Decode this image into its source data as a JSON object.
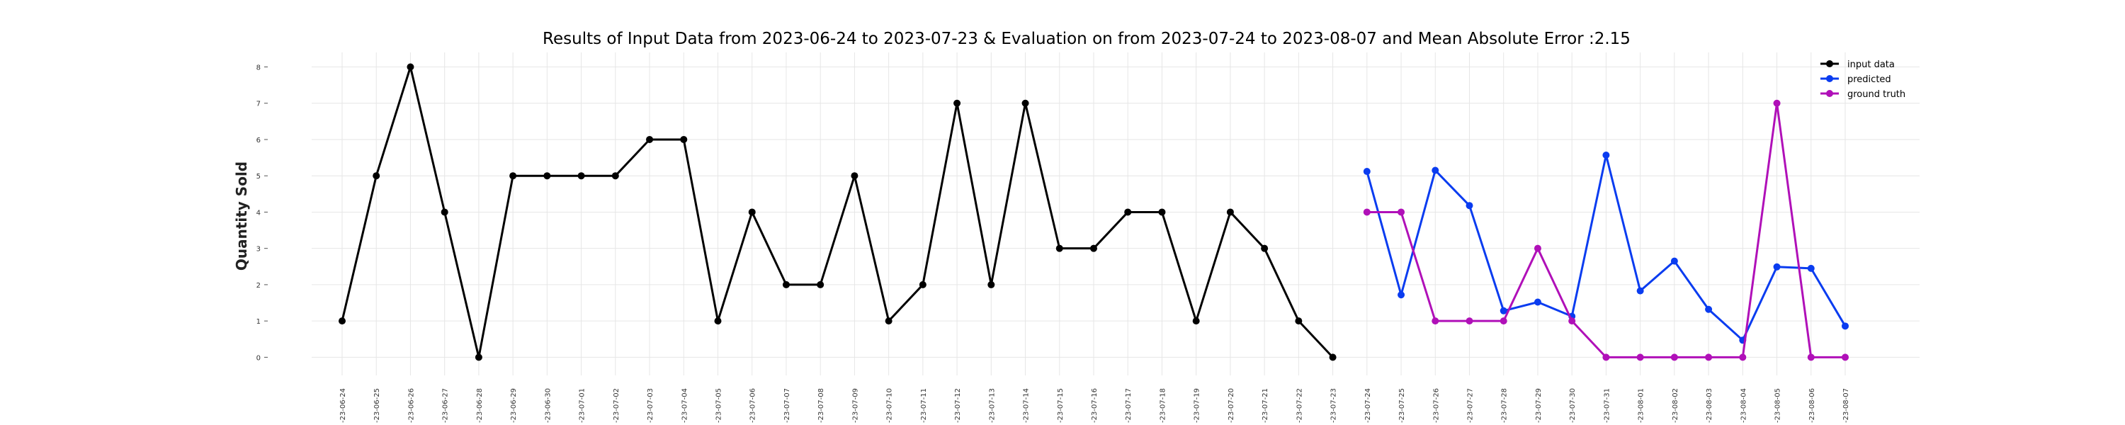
{
  "chart_data": {
    "type": "line",
    "title": "Results of Input Data from 2023-06-24 to 2023-07-23 & Evaluation on from 2023-07-24 to 2023-08-07 and Mean Absolute Error  :2.15",
    "xlabel": "",
    "ylabel": "Quantity Sold",
    "ylim": [
      -0.5,
      8.4
    ],
    "yticks": [
      0,
      1,
      2,
      3,
      4,
      5,
      6,
      7,
      8
    ],
    "grid": true,
    "legend_position": "top-right",
    "x_dates": [
      "2023-06-24",
      "2023-06-25",
      "2023-06-26",
      "2023-06-27",
      "2023-06-28",
      "2023-06-29",
      "2023-06-30",
      "2023-07-01",
      "2023-07-02",
      "2023-07-03",
      "2023-07-04",
      "2023-07-05",
      "2023-07-06",
      "2023-07-07",
      "2023-07-08",
      "2023-07-09",
      "2023-07-10",
      "2023-07-11",
      "2023-07-12",
      "2023-07-13",
      "2023-07-14",
      "2023-07-15",
      "2023-07-16",
      "2023-07-17",
      "2023-07-18",
      "2023-07-19",
      "2023-07-20",
      "2023-07-21",
      "2023-07-22",
      "2023-07-23",
      "2023-07-24",
      "2023-07-25",
      "2023-07-26",
      "2023-07-27",
      "2023-07-28",
      "2023-07-29",
      "2023-07-30",
      "2023-07-31",
      "2023-08-01",
      "2023-08-02",
      "2023-08-03",
      "2023-08-04",
      "2023-08-05",
      "2023-08-06",
      "2023-08-07"
    ],
    "tick_labels": [
      "-23-06-24",
      "-23-06-25",
      "-23-06-26",
      "-23-06-27",
      "-23-06-28",
      "-23-06-29",
      "-23-06-30",
      "-23-07-01",
      "-23-07-02",
      "-23-07-03",
      "-23-07-04",
      "-23-07-05",
      "-23-07-06",
      "-23-07-07",
      "-23-07-08",
      "-23-07-09",
      "-23-07-10",
      "-23-07-11",
      "-23-07-12",
      "-23-07-13",
      "-23-07-14",
      "-23-07-15",
      "-23-07-16",
      "-23-07-17",
      "-23-07-18",
      "-23-07-19",
      "-23-07-20",
      "-23-07-21",
      "-23-07-22",
      "-23-07-23",
      "-23-07-24",
      "-23-07-25",
      "-23-07-26",
      "-23-07-27",
      "-23-07-28",
      "-23-07-29",
      "-23-07-30",
      "-23-07-31",
      "-23-08-01",
      "-23-08-02",
      "-23-08-03",
      "-23-08-04",
      "-23-08-05",
      "-23-08-06",
      "-23-08-07"
    ],
    "series": [
      {
        "name": "input data",
        "color": "#000000",
        "x": [
          "2023-06-24",
          "2023-06-25",
          "2023-06-26",
          "2023-06-27",
          "2023-06-28",
          "2023-06-29",
          "2023-06-30",
          "2023-07-01",
          "2023-07-02",
          "2023-07-03",
          "2023-07-04",
          "2023-07-05",
          "2023-07-06",
          "2023-07-07",
          "2023-07-08",
          "2023-07-09",
          "2023-07-10",
          "2023-07-11",
          "2023-07-12",
          "2023-07-13",
          "2023-07-14",
          "2023-07-15",
          "2023-07-16",
          "2023-07-17",
          "2023-07-18",
          "2023-07-19",
          "2023-07-20",
          "2023-07-21",
          "2023-07-22",
          "2023-07-23"
        ],
        "values": [
          1,
          5,
          8,
          4,
          0,
          5,
          5,
          5,
          5,
          6,
          6,
          1,
          4,
          2,
          2,
          5,
          1,
          2,
          7,
          2,
          7,
          3,
          3,
          4,
          4,
          1,
          4,
          3,
          1,
          0
        ]
      },
      {
        "name": "predicted",
        "color": "#0a3cf0",
        "x": [
          "2023-07-24",
          "2023-07-25",
          "2023-07-26",
          "2023-07-27",
          "2023-07-28",
          "2023-07-29",
          "2023-07-30",
          "2023-07-31",
          "2023-08-01",
          "2023-08-02",
          "2023-08-03",
          "2023-08-04",
          "2023-08-05",
          "2023-08-06",
          "2023-08-07"
        ],
        "values": [
          5.12,
          1.72,
          5.15,
          4.18,
          1.28,
          1.52,
          1.13,
          5.57,
          1.83,
          2.65,
          1.32,
          0.47,
          2.49,
          2.45,
          0.86
        ]
      },
      {
        "name": "ground truth",
        "color": "#b010b8",
        "x": [
          "2023-07-24",
          "2023-07-25",
          "2023-07-26",
          "2023-07-27",
          "2023-07-28",
          "2023-07-29",
          "2023-07-30",
          "2023-07-31",
          "2023-08-01",
          "2023-08-02",
          "2023-08-03",
          "2023-08-04",
          "2023-08-05",
          "2023-08-06",
          "2023-08-07"
        ],
        "values": [
          4,
          4,
          1,
          1,
          1,
          3,
          1,
          0,
          0,
          0,
          0,
          0,
          7,
          0,
          0
        ]
      }
    ]
  }
}
